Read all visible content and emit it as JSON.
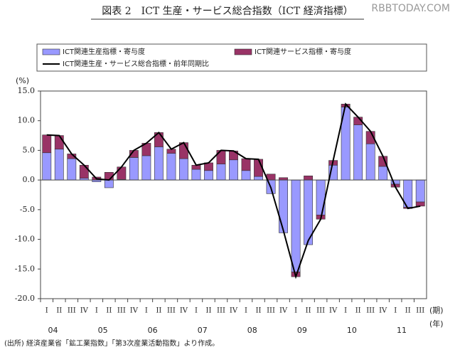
{
  "watermark": "RBBTODAY.COM",
  "chart_data": {
    "type": "bar",
    "title": "図表 2　ICT 生産・サービス総合指数（ICT 経済指標）",
    "y_label": "(%)",
    "x_label_quarter": "(期)",
    "x_label_year": "(年)",
    "source": "(出所) 経済産業省「鉱工業指数」「第3次産業活動指数」より作成。",
    "categories": [
      "I",
      "II",
      "III",
      "IV",
      "I",
      "II",
      "III",
      "IV",
      "I",
      "II",
      "III",
      "IV",
      "I",
      "II",
      "III",
      "IV",
      "I",
      "II",
      "III",
      "IV",
      "I",
      "II",
      "III",
      "IV",
      "I",
      "II",
      "III",
      "IV",
      "I",
      "II",
      "III"
    ],
    "years": [
      "04",
      "05",
      "06",
      "07",
      "08",
      "09",
      "10",
      "11"
    ],
    "series": [
      {
        "name": "ICT関連生産指標・寄与度",
        "color": "#9999ff",
        "stack": true,
        "values": [
          4.6,
          5.2,
          3.6,
          0.3,
          -0.3,
          -1.3,
          0.1,
          3.8,
          4.1,
          5.6,
          4.5,
          3.6,
          1.8,
          1.6,
          2.7,
          3.4,
          1.6,
          0.6,
          -2.3,
          -8.9,
          -15.5,
          -10.9,
          -5.9,
          2.5,
          12.3,
          9.3,
          6.1,
          2.3,
          -0.7,
          -4.6,
          -3.7
        ]
      },
      {
        "name": "ICT関連サービス指標・寄与度",
        "color": "#993366",
        "stack": true,
        "values": [
          3.0,
          2.3,
          0.8,
          2.2,
          0.5,
          1.3,
          2.1,
          1.2,
          2.1,
          2.4,
          0.7,
          2.7,
          0.7,
          1.3,
          2.3,
          1.5,
          2.0,
          2.9,
          1.0,
          0.4,
          -0.8,
          0.7,
          -0.7,
          0.8,
          0.5,
          1.3,
          2.1,
          1.7,
          -0.5,
          -0.2,
          -0.7
        ]
      },
      {
        "name": "ICT関連生産・サービス総合指標・前年同期比",
        "color": "#000000",
        "line": true,
        "values": [
          7.6,
          7.5,
          4.4,
          2.5,
          0.2,
          0.0,
          2.2,
          5.0,
          6.2,
          8.0,
          5.2,
          6.3,
          2.5,
          2.9,
          5.0,
          4.9,
          3.6,
          3.5,
          -1.3,
          -8.5,
          -16.3,
          -10.2,
          -6.6,
          3.3,
          12.8,
          10.6,
          8.2,
          4.0,
          -1.2,
          -4.8,
          -4.4
        ]
      }
    ],
    "ylim": [
      -20,
      15
    ],
    "yticks": [
      {
        "value": -20,
        "label": "-20.0"
      },
      {
        "value": -15,
        "label": "-15.0"
      },
      {
        "value": -10,
        "label": "-10.0"
      },
      {
        "value": -5,
        "label": "-5.0"
      },
      {
        "value": 0,
        "label": "0.0"
      },
      {
        "value": 5,
        "label": "5.0"
      },
      {
        "value": 10,
        "label": "10.0"
      },
      {
        "value": 15,
        "label": "15.0"
      }
    ]
  }
}
